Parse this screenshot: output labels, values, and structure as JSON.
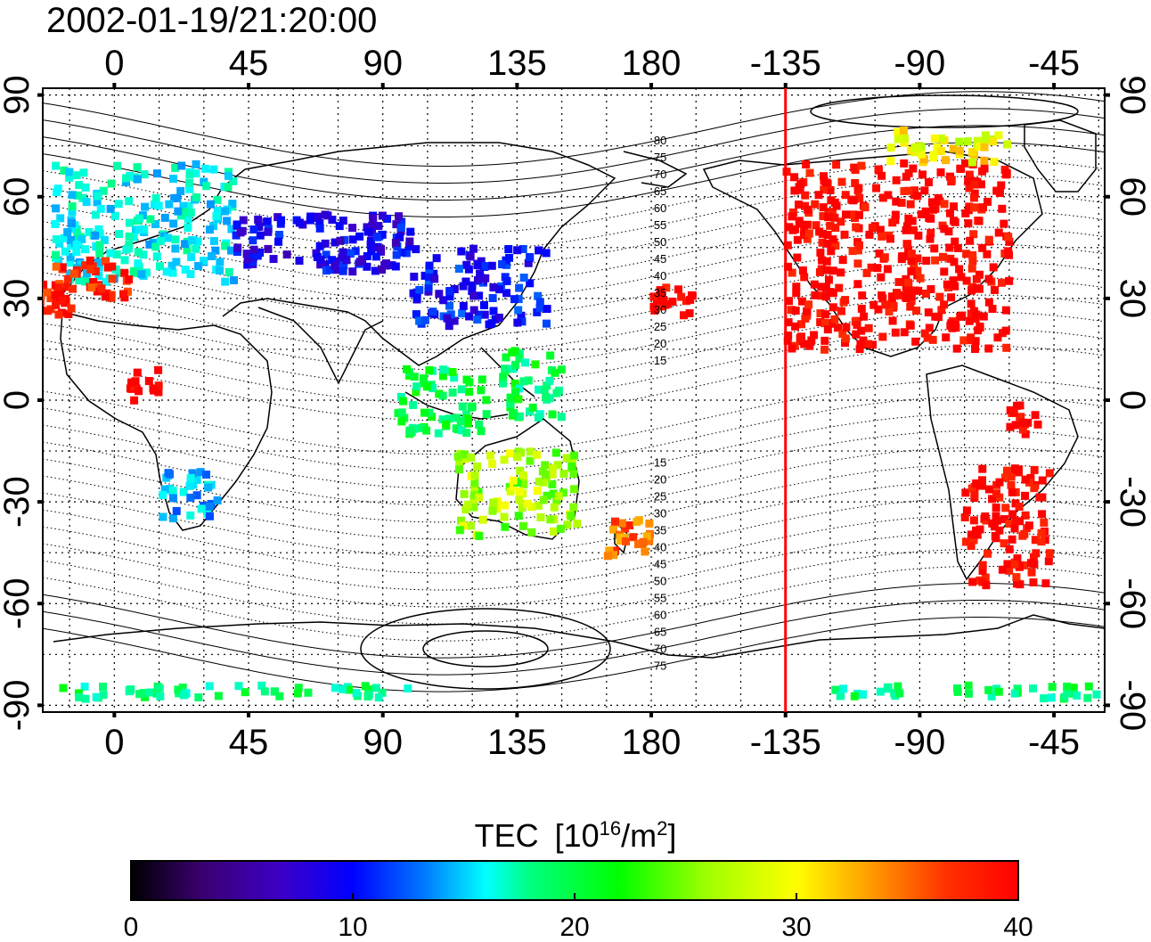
{
  "title": "2002-01-19/21:20:00",
  "map": {
    "top_axis_labels": [
      "0",
      "45",
      "90",
      "135",
      "180",
      "-135",
      "-90",
      "-45"
    ],
    "bottom_axis_labels": [
      "0",
      "45",
      "90",
      "135",
      "180",
      "-135",
      "-90",
      "-45"
    ],
    "left_axis_labels": [
      "90",
      "60",
      "30",
      "0",
      "-30",
      "-60",
      "-90"
    ],
    "right_axis_labels": [
      "90",
      "60",
      "30",
      "0",
      "-30",
      "-60",
      "-90"
    ],
    "longitude_ticks_deg": [
      0,
      45,
      90,
      135,
      180,
      225,
      270,
      315
    ],
    "latitude_ticks_deg": [
      90,
      60,
      30,
      0,
      -30,
      -60,
      -90
    ],
    "longitude_range_deg": [
      -24,
      332
    ],
    "latitude_range_deg": [
      -92,
      92
    ],
    "grid": true,
    "terminator_longitude_deg": 225,
    "terminator_color": "#ff0000",
    "north_contour_labels": [
      "80",
      "75",
      "70",
      "65",
      "60",
      "55",
      "50",
      "45",
      "40",
      "35",
      "30",
      "25",
      "20",
      "15"
    ],
    "south_contour_labels": [
      "15",
      "20",
      "25",
      "30",
      "35",
      "40",
      "45",
      "50",
      "55",
      "60",
      "65",
      "70",
      "75"
    ]
  },
  "colorbar": {
    "title_base": "TEC",
    "title_unit_prefix": "[10",
    "title_unit_exp": "16",
    "title_unit_mid": "/m",
    "title_unit_exp2": "2",
    "title_unit_suffix": "]",
    "ticks": [
      "0",
      "10",
      "20",
      "30",
      "40"
    ],
    "range": [
      0,
      40
    ],
    "colors": [
      "#000000",
      "#3a0070",
      "#3c00c8",
      "#0000ff",
      "#0078ff",
      "#00ffff",
      "#00ff80",
      "#00ff00",
      "#a0ff00",
      "#ffff00",
      "#ffa000",
      "#ff3000",
      "#ff0000"
    ]
  },
  "tec_regions": [
    {
      "region": "Europe",
      "tec": 17
    },
    {
      "region": "Iberia / N. Africa coast",
      "tec": 38
    },
    {
      "region": "Russia / Central Asia",
      "tec": 9
    },
    {
      "region": "East Asia / Japan",
      "tec": 10
    },
    {
      "region": "Southeast Asia",
      "tec": 21
    },
    {
      "region": "Australia",
      "tec": 27
    },
    {
      "region": "New Zealand",
      "tec": 35
    },
    {
      "region": "Southern Africa",
      "tec": 15
    },
    {
      "region": "West Africa",
      "tec": 40
    },
    {
      "region": "North America",
      "tec": 40
    },
    {
      "region": "South America",
      "tec": 40
    },
    {
      "region": "Greenland",
      "tec": 30
    },
    {
      "region": "Antarctica",
      "tec": 20
    }
  ]
}
